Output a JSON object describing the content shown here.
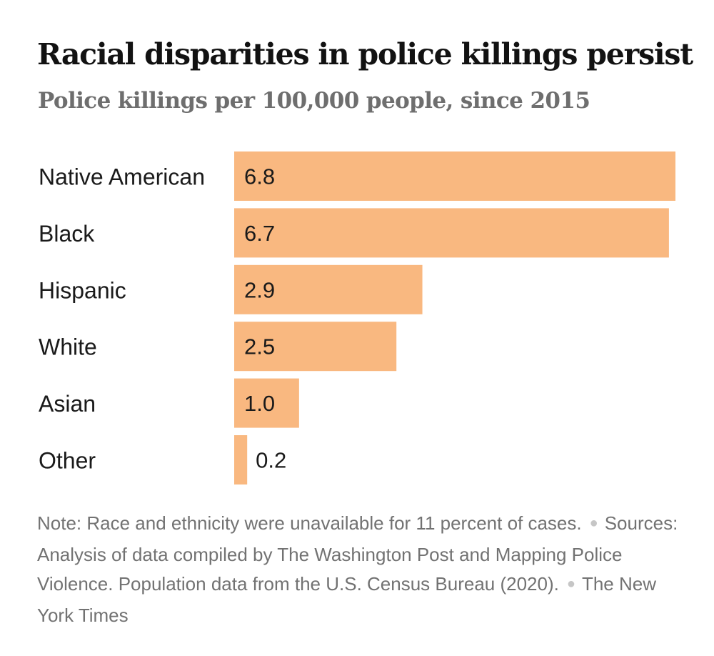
{
  "header": {
    "title": "Racial disparities in police killings persist",
    "subtitle": "Police killings per 100,000 people, since 2015"
  },
  "chart_data": {
    "type": "bar",
    "orientation": "horizontal",
    "title": "Racial disparities in police killings persist",
    "subtitle": "Police killings per 100,000 people, since 2015",
    "categories": [
      "Native American",
      "Black",
      "Hispanic",
      "White",
      "Asian",
      "Other"
    ],
    "values": [
      6.8,
      6.7,
      2.9,
      2.5,
      1.0,
      0.2
    ],
    "value_labels": [
      "6.8",
      "6.7",
      "2.9",
      "2.5",
      "1.0",
      "0.2"
    ],
    "xlim": [
      0,
      6.8
    ],
    "grid": false,
    "legend": "none",
    "bar_color": "#f9b880",
    "xlabel": "",
    "ylabel": ""
  },
  "footer": {
    "note": "Note: Race and ethnicity were unavailable for 11 percent of cases.",
    "sources": "Sources: Analysis of data compiled by The Washington Post and Mapping Police Violence. Population data from the U.S. Census Bureau (2020).",
    "credit": "The New York Times"
  }
}
